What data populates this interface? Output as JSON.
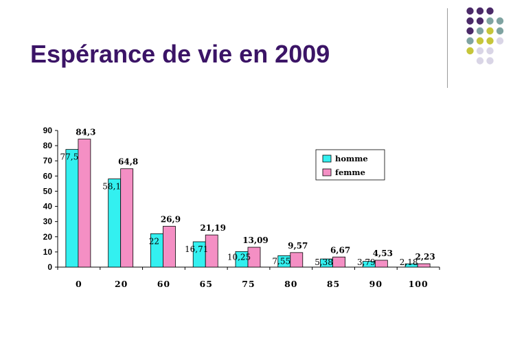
{
  "slide": {
    "title": "Espérance de vie en 2009"
  },
  "decoration": {
    "dot_colors": [
      "#4b2a68",
      "#7fa3a1",
      "#c6c63a",
      "#d9d5e6"
    ]
  },
  "chart_data": {
    "type": "bar",
    "categories": [
      "0",
      "20",
      "60",
      "65",
      "75",
      "80",
      "85",
      "90",
      "100"
    ],
    "series": [
      {
        "name": "homme",
        "color": "#33f0f0",
        "values": [
          77.5,
          58.1,
          22,
          16.71,
          10.25,
          7.55,
          5.38,
          3.79,
          2.18
        ],
        "labels": [
          "77,5",
          "58,1",
          "22",
          "16,71",
          "10,25",
          "7,55",
          "5,38",
          "3,79",
          "2,18"
        ]
      },
      {
        "name": "femme",
        "color": "#f48fc4",
        "values": [
          84.3,
          64.8,
          26.9,
          21.19,
          13.09,
          9.57,
          6.67,
          4.53,
          2.23
        ],
        "labels": [
          "84,3",
          "64,8",
          "26,9",
          "21,19",
          "13,09",
          "9,57",
          "6,67",
          "4,53",
          "2,23"
        ]
      }
    ],
    "ylim": [
      0,
      90
    ],
    "yticks": [
      "0",
      "10",
      "20",
      "30",
      "40",
      "50",
      "60",
      "70",
      "80",
      "90"
    ],
    "grid": false,
    "legend_position": "top-right"
  }
}
